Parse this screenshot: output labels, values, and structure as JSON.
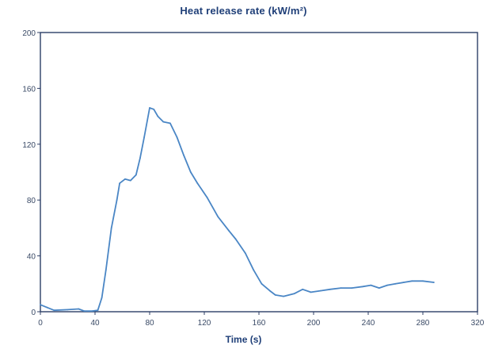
{
  "chart_data": {
    "type": "line",
    "title": "Heat release rate (kW/m²)",
    "xlabel": "Time (s)",
    "ylabel": "",
    "xlim": [
      0,
      320
    ],
    "ylim": [
      0,
      200
    ],
    "xticks": [
      "0",
      "40",
      "80",
      "120",
      "160",
      "200",
      "240",
      "280",
      "320"
    ],
    "yticks": [
      "0",
      "40",
      "80",
      "120",
      "160",
      "200"
    ],
    "line_color": "#4a86c5",
    "axis_color": "#2c3e66",
    "grid": false,
    "series": [
      {
        "points": [
          [
            0,
            5
          ],
          [
            5,
            3
          ],
          [
            10,
            1
          ],
          [
            20,
            1.5
          ],
          [
            28,
            2
          ],
          [
            32,
            0.5
          ],
          [
            38,
            0.5
          ],
          [
            42,
            1
          ],
          [
            45,
            10
          ],
          [
            48,
            30
          ],
          [
            52,
            60
          ],
          [
            56,
            80
          ],
          [
            58,
            92
          ],
          [
            62,
            95
          ],
          [
            66,
            94
          ],
          [
            70,
            98
          ],
          [
            73,
            110
          ],
          [
            76,
            125
          ],
          [
            80,
            146
          ],
          [
            83,
            145
          ],
          [
            86,
            140
          ],
          [
            90,
            136
          ],
          [
            95,
            135
          ],
          [
            100,
            125
          ],
          [
            105,
            112
          ],
          [
            110,
            100
          ],
          [
            115,
            92
          ],
          [
            122,
            82
          ],
          [
            130,
            68
          ],
          [
            138,
            58
          ],
          [
            143,
            52
          ],
          [
            150,
            42
          ],
          [
            156,
            30
          ],
          [
            162,
            20
          ],
          [
            168,
            15
          ],
          [
            172,
            12
          ],
          [
            178,
            11
          ],
          [
            186,
            13
          ],
          [
            192,
            16
          ],
          [
            198,
            14
          ],
          [
            205,
            15
          ],
          [
            212,
            16
          ],
          [
            220,
            17
          ],
          [
            228,
            17
          ],
          [
            236,
            18
          ],
          [
            242,
            19
          ],
          [
            248,
            17
          ],
          [
            254,
            19
          ],
          [
            260,
            20
          ],
          [
            266,
            21
          ],
          [
            272,
            22
          ],
          [
            280,
            22
          ],
          [
            288,
            21
          ]
        ]
      }
    ]
  }
}
